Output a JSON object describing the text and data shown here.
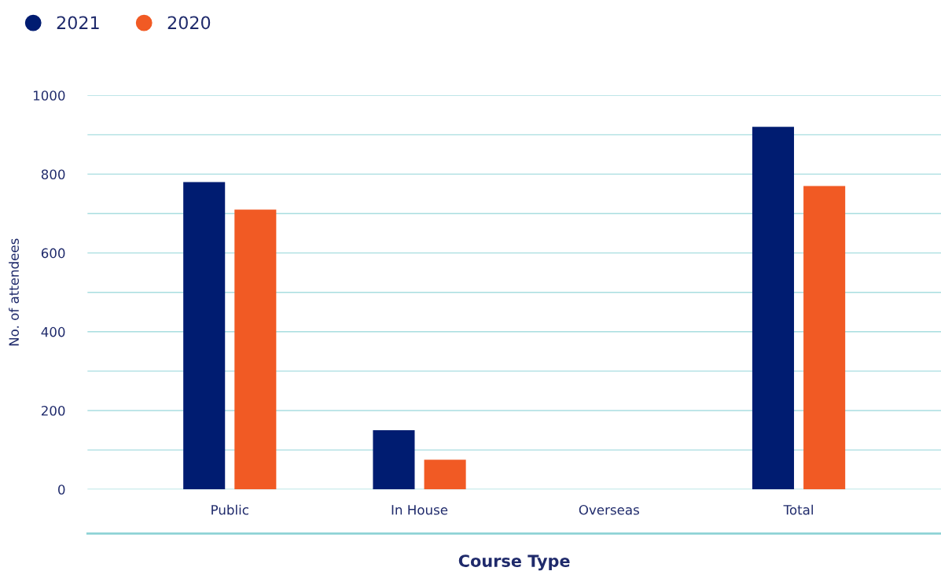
{
  "chart_data": {
    "type": "bar",
    "xlabel": "Course Type",
    "ylabel": "No. of attendees",
    "categories": [
      "Public",
      "In House",
      "Overseas",
      "Total"
    ],
    "series": [
      {
        "name": "2021",
        "color": "#001c71",
        "values": [
          780,
          150,
          0,
          920
        ]
      },
      {
        "name": "2020",
        "color": "#f15a24",
        "values": [
          710,
          75,
          0,
          770
        ]
      }
    ],
    "ylim": [
      0,
      1000
    ],
    "yticks": [
      0,
      {
        "value": 100,
        "label": null
      },
      200,
      {
        "value": 300,
        "label": null
      },
      400,
      {
        "value": 500,
        "label": null
      },
      600,
      {
        "value": 700,
        "label": null
      },
      800,
      {
        "value": 900,
        "label": null
      },
      1000
    ],
    "grid": "y",
    "legend": "top left"
  }
}
